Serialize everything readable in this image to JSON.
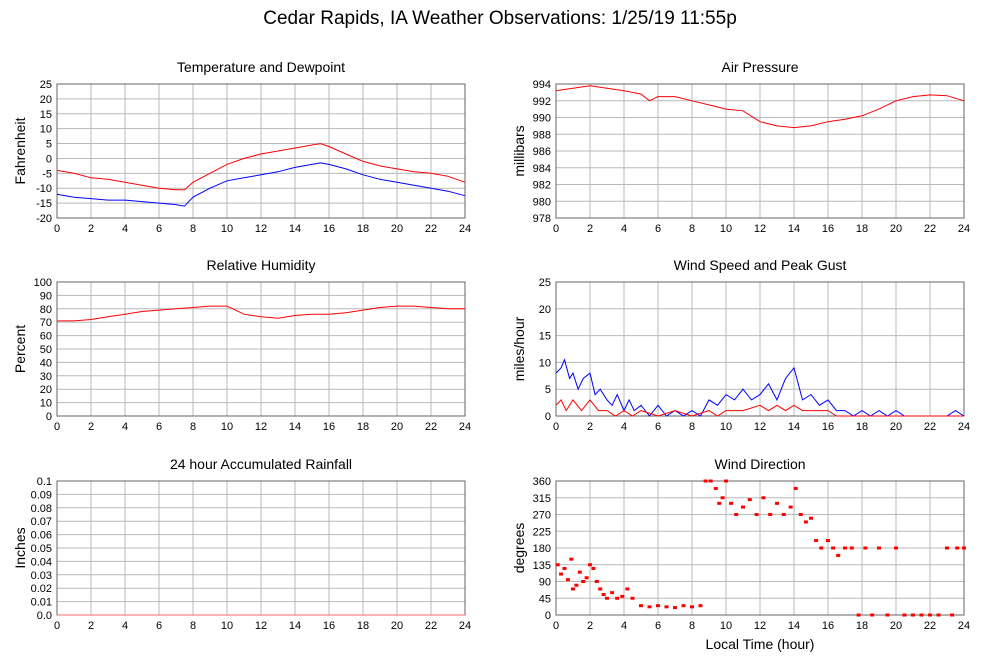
{
  "page": {
    "title": "Cedar Rapids, IA Weather Observations: 1/25/19 11:55p"
  },
  "colors": {
    "red": "#ff0000",
    "blue": "#0000ff",
    "grid": "#b8b8b8",
    "frame": "#666666",
    "line_pink": "#ff6a6a"
  },
  "chart_data": [
    {
      "id": "temp",
      "type": "line",
      "title": "Temperature and Dewpoint",
      "ylabel": "Fahrenheit",
      "xlim": [
        0,
        24
      ],
      "ylim": [
        -20,
        25
      ],
      "xticks": [
        "0",
        "2",
        "4",
        "6",
        "8",
        "10",
        "12",
        "14",
        "16",
        "18",
        "20",
        "22",
        "24"
      ],
      "yticks": [
        "-20",
        "-15",
        "-10",
        "-5",
        "0",
        "5",
        "10",
        "15",
        "20",
        "25"
      ],
      "series": [
        {
          "color": "#ff0000",
          "x": [
            0,
            1,
            2,
            3,
            4,
            5,
            6,
            7,
            7.5,
            8,
            9,
            10,
            11,
            12,
            13,
            14,
            15,
            15.5,
            16,
            17,
            18,
            19,
            20,
            21,
            22,
            23,
            24
          ],
          "y": [
            -4,
            -5,
            -6.5,
            -7,
            -8,
            -9,
            -10,
            -10.5,
            -10.5,
            -8,
            -5,
            -2,
            0,
            1.5,
            2.5,
            3.5,
            4.5,
            5,
            4,
            1.5,
            -1,
            -2.5,
            -3.5,
            -4.5,
            -5,
            -6,
            -8
          ]
        },
        {
          "color": "#0000ff",
          "x": [
            0,
            1,
            2,
            3,
            4,
            5,
            6,
            7,
            7.5,
            8,
            9,
            10,
            11,
            12,
            13,
            14,
            15,
            15.5,
            16,
            17,
            18,
            19,
            20,
            21,
            22,
            23,
            24
          ],
          "y": [
            -12,
            -13,
            -13.5,
            -14,
            -14,
            -14.5,
            -15,
            -15.5,
            -16,
            -13,
            -10,
            -7.5,
            -6.5,
            -5.5,
            -4.5,
            -3,
            -2,
            -1.5,
            -2,
            -3.5,
            -5.5,
            -7,
            -8,
            -9,
            -10,
            -11,
            -12.5
          ]
        }
      ]
    },
    {
      "id": "pressure",
      "type": "line",
      "title": "Air Pressure",
      "ylabel": "millibars",
      "xlim": [
        0,
        24
      ],
      "ylim": [
        978,
        994
      ],
      "xticks": [
        "0",
        "2",
        "4",
        "6",
        "8",
        "10",
        "12",
        "14",
        "16",
        "18",
        "20",
        "22",
        "24"
      ],
      "yticks": [
        "978",
        "980",
        "982",
        "984",
        "986",
        "988",
        "990",
        "992",
        "994"
      ],
      "series": [
        {
          "color": "#ff0000",
          "x": [
            0,
            1,
            2,
            3,
            4,
            5,
            5.5,
            6,
            7,
            8,
            9,
            10,
            11,
            12,
            13,
            14,
            15,
            16,
            17,
            18,
            19,
            20,
            21,
            22,
            23,
            24
          ],
          "y": [
            993.2,
            993.5,
            993.8,
            993.5,
            993.2,
            992.8,
            992,
            992.5,
            992.5,
            992,
            991.5,
            991,
            990.8,
            989.5,
            989,
            988.8,
            989,
            989.5,
            989.8,
            990.2,
            991,
            992,
            992.5,
            992.7,
            992.6,
            992
          ]
        }
      ]
    },
    {
      "id": "humidity",
      "type": "line",
      "title": "Relative Humidity",
      "ylabel": "Percent",
      "xlim": [
        0,
        24
      ],
      "ylim": [
        0,
        100
      ],
      "xticks": [
        "0",
        "2",
        "4",
        "6",
        "8",
        "10",
        "12",
        "14",
        "16",
        "18",
        "20",
        "22",
        "24"
      ],
      "yticks": [
        "0",
        "10",
        "20",
        "30",
        "40",
        "50",
        "60",
        "70",
        "80",
        "90",
        "100"
      ],
      "series": [
        {
          "color": "#ff0000",
          "x": [
            0,
            1,
            2,
            3,
            4,
            5,
            6,
            7,
            8,
            9,
            10,
            10.5,
            11,
            12,
            13,
            14,
            15,
            16,
            17,
            18,
            19,
            20,
            21,
            22,
            23,
            24
          ],
          "y": [
            71,
            71,
            72,
            74,
            76,
            78,
            79,
            80,
            81,
            82,
            82,
            79,
            76,
            74,
            73,
            75,
            76,
            76,
            77,
            79,
            81,
            82,
            82,
            81,
            80,
            80
          ]
        }
      ]
    },
    {
      "id": "wind",
      "type": "line",
      "title": "Wind Speed and Peak Gust",
      "ylabel": "miles/hour",
      "xlim": [
        0,
        24
      ],
      "ylim": [
        0,
        25
      ],
      "xticks": [
        "0",
        "2",
        "4",
        "6",
        "8",
        "10",
        "12",
        "14",
        "16",
        "18",
        "20",
        "22",
        "24"
      ],
      "yticks": [
        "0",
        "5",
        "10",
        "15",
        "20",
        "25"
      ],
      "series": [
        {
          "color": "#0000ff",
          "x": [
            0,
            0.3,
            0.5,
            0.8,
            1,
            1.3,
            1.6,
            2,
            2.3,
            2.6,
            3,
            3.3,
            3.6,
            4,
            4.3,
            4.6,
            5,
            5.5,
            6,
            6.5,
            7,
            7.5,
            8,
            8.5,
            9,
            9.5,
            10,
            10.5,
            11,
            11.5,
            12,
            12.5,
            13,
            13.5,
            14,
            14.5,
            15,
            15.5,
            16,
            16.5,
            17,
            17.5,
            18,
            18.5,
            19,
            19.5,
            20,
            20.5,
            21,
            22,
            23,
            23.5,
            24
          ],
          "y": [
            8,
            9,
            10.5,
            7,
            8,
            5,
            7,
            8,
            4,
            5,
            3,
            2,
            4,
            1,
            3,
            1,
            2,
            0,
            2,
            0,
            1,
            0,
            1,
            0,
            3,
            2,
            4,
            3,
            5,
            3,
            4,
            6,
            3,
            7,
            9,
            3,
            4,
            2,
            3,
            1,
            1,
            0,
            1,
            0,
            1,
            0,
            1,
            0,
            0,
            0,
            0,
            1,
            0
          ]
        },
        {
          "color": "#ff0000",
          "x": [
            0,
            0.3,
            0.6,
            1,
            1.5,
            2,
            2.5,
            3,
            3.5,
            4,
            4.5,
            5,
            6,
            7,
            8,
            9,
            9.5,
            10,
            11,
            12,
            12.5,
            13,
            13.5,
            14,
            14.5,
            15,
            16,
            16.5,
            17,
            24
          ],
          "y": [
            2,
            3,
            1,
            3,
            1,
            3,
            1,
            1,
            0,
            1,
            0,
            1,
            0,
            1,
            0,
            1,
            0,
            1,
            1,
            2,
            1,
            2,
            1,
            2,
            1,
            1,
            1,
            0,
            0,
            0
          ]
        }
      ]
    },
    {
      "id": "rain",
      "type": "line",
      "title": "24 hour Accumulated Rainfall",
      "ylabel": "Inches",
      "xlim": [
        0,
        24
      ],
      "ylim": [
        0,
        0.1
      ],
      "xticks": [
        "0",
        "2",
        "4",
        "6",
        "8",
        "10",
        "12",
        "14",
        "16",
        "18",
        "20",
        "22",
        "24"
      ],
      "yticks": [
        "0.0",
        "0.01",
        "0.02",
        "0.03",
        "0.04",
        "0.05",
        "0.06",
        "0.07",
        "0.08",
        "0.09",
        "0.1"
      ],
      "series": [
        {
          "color": "#ff6a6a",
          "x": [
            0,
            24
          ],
          "y": [
            0,
            0
          ]
        }
      ]
    },
    {
      "id": "direction",
      "type": "scatter",
      "title": "Wind Direction",
      "ylabel": "degrees",
      "xlabel": "Local Time (hour)",
      "xlim": [
        0,
        24
      ],
      "ylim": [
        0,
        360
      ],
      "xticks": [
        "0",
        "2",
        "4",
        "6",
        "8",
        "10",
        "12",
        "14",
        "16",
        "18",
        "20",
        "22",
        "24"
      ],
      "yticks": [
        "0",
        "45",
        "90",
        "135",
        "180",
        "225",
        "270",
        "315",
        "360"
      ],
      "series": [
        {
          "color": "#ff0000",
          "x": [
            0.1,
            0.3,
            0.5,
            0.7,
            0.9,
            1.0,
            1.2,
            1.4,
            1.6,
            1.8,
            2.0,
            2.2,
            2.4,
            2.6,
            2.8,
            3.0,
            3.3,
            3.6,
            3.9,
            4.2,
            4.5,
            5.0,
            5.5,
            6.0,
            6.5,
            7.0,
            7.5,
            8.0,
            8.5,
            8.8,
            9.1,
            9.4,
            9.6,
            9.8,
            10.0,
            10.3,
            10.6,
            11.0,
            11.4,
            11.8,
            12.2,
            12.6,
            13.0,
            13.4,
            13.8,
            14.1,
            14.4,
            14.7,
            15.0,
            15.3,
            15.6,
            16.0,
            16.3,
            16.6,
            17.0,
            17.4,
            17.8,
            18.2,
            18.6,
            19.0,
            19.5,
            20.0,
            20.5,
            21,
            21.5,
            22,
            22.5,
            23,
            23.3,
            23.6,
            24
          ],
          "y": [
            135,
            110,
            125,
            95,
            150,
            70,
            80,
            115,
            90,
            100,
            135,
            125,
            90,
            70,
            55,
            45,
            60,
            45,
            50,
            70,
            45,
            25,
            22,
            25,
            22,
            20,
            25,
            22,
            25,
            360,
            360,
            340,
            300,
            315,
            360,
            300,
            270,
            290,
            310,
            270,
            315,
            270,
            300,
            270,
            290,
            340,
            270,
            250,
            260,
            200,
            180,
            200,
            180,
            160,
            180,
            180,
            0,
            180,
            0,
            180,
            0,
            180,
            0,
            0,
            0,
            0,
            0,
            180,
            0,
            180,
            180
          ]
        }
      ]
    }
  ]
}
